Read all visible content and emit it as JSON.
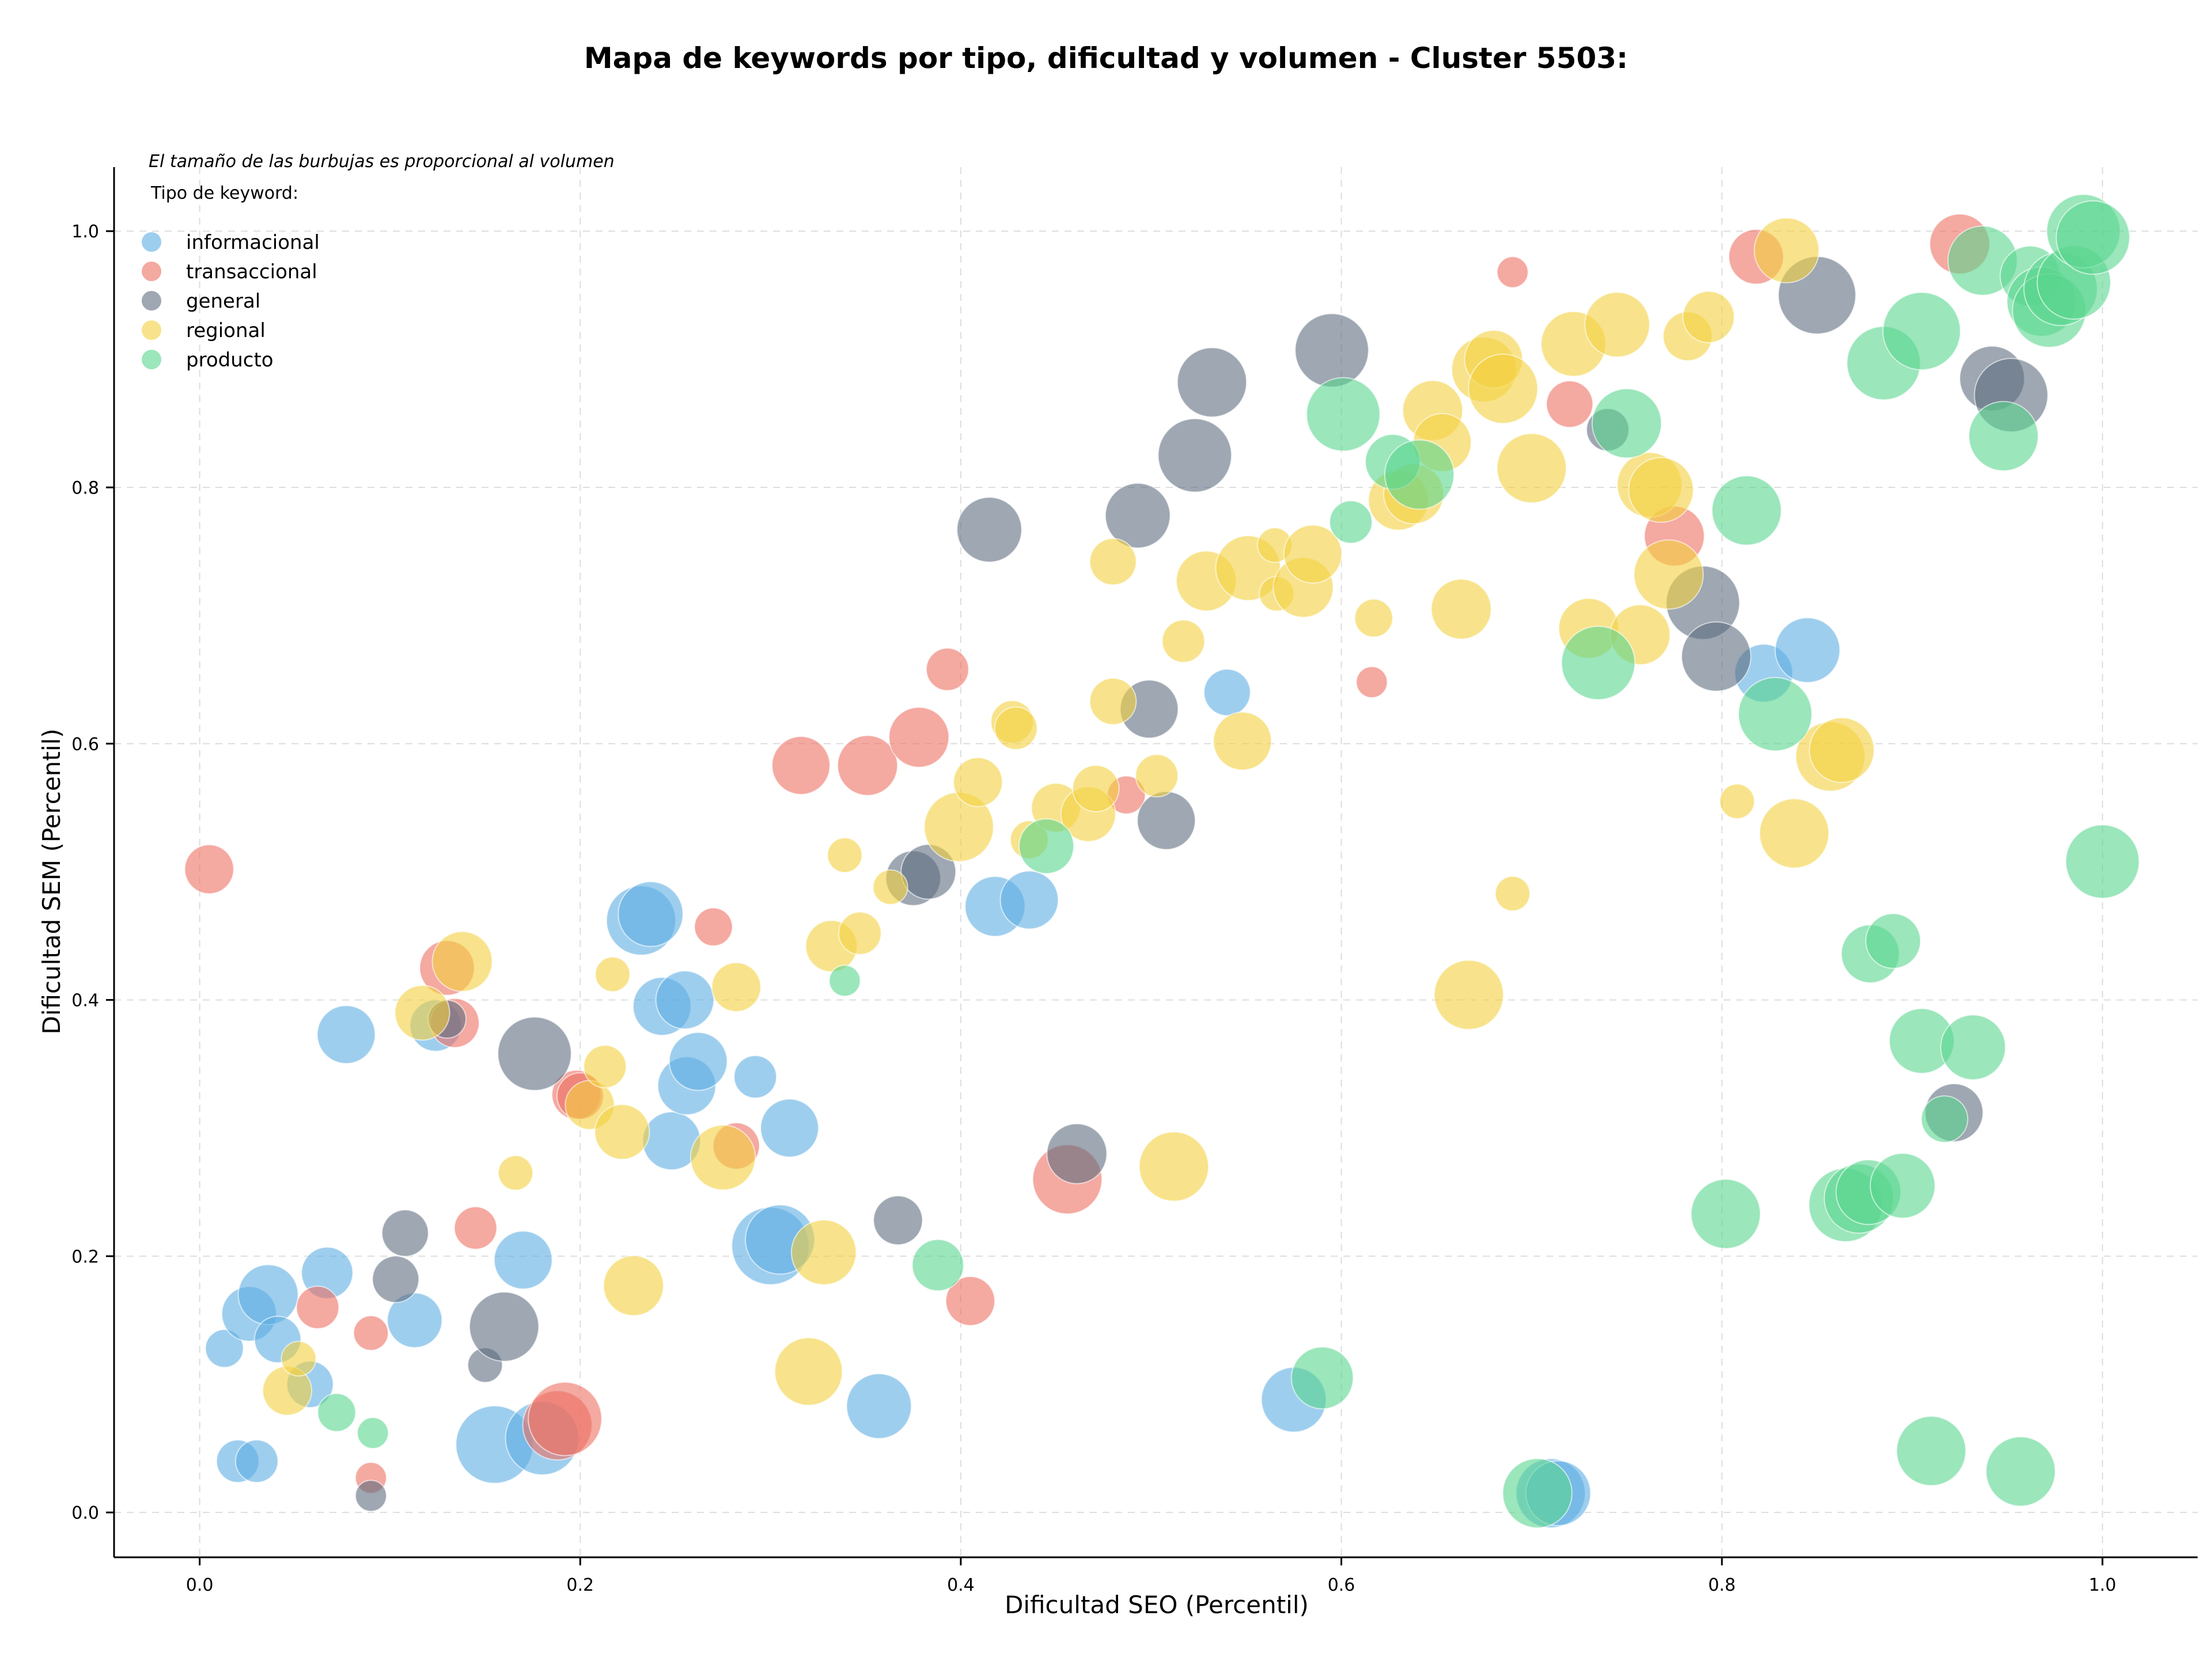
{
  "chart_data": {
    "type": "scatter",
    "title": "Mapa de keywords por tipo, dificultad y volumen - Cluster 5503:",
    "xlabel": "Dificultad SEO (Percentil)",
    "ylabel": "Dificultad SEM (Percentil)",
    "xlim": [
      -0.045,
      1.05
    ],
    "ylim": [
      -0.035,
      1.05
    ],
    "x_ticks": [
      "0.0",
      "0.2",
      "0.4",
      "0.6",
      "0.8",
      "1.0"
    ],
    "y_ticks": [
      "0.0",
      "0.2",
      "0.4",
      "0.6",
      "0.8",
      "1.0"
    ],
    "grid": true,
    "legend": {
      "placement": "top-left",
      "note": "El tamaño de las burbujas es proporcional al volumen",
      "title": "Tipo de keyword:"
    },
    "series": [
      {
        "name": "informacional",
        "color": "#5DADE2",
        "points": [
          {
            "x": 0.013,
            "y": 0.128,
            "s": 12
          },
          {
            "x": 0.02,
            "y": 0.04,
            "s": 15
          },
          {
            "x": 0.03,
            "y": 0.04,
            "s": 15
          },
          {
            "x": 0.026,
            "y": 0.155,
            "s": 25
          },
          {
            "x": 0.036,
            "y": 0.17,
            "s": 30
          },
          {
            "x": 0.041,
            "y": 0.135,
            "s": 18
          },
          {
            "x": 0.058,
            "y": 0.1,
            "s": 18
          },
          {
            "x": 0.067,
            "y": 0.187,
            "s": 22
          },
          {
            "x": 0.077,
            "y": 0.373,
            "s": 28
          },
          {
            "x": 0.113,
            "y": 0.15,
            "s": 25
          },
          {
            "x": 0.124,
            "y": 0.38,
            "s": 22
          },
          {
            "x": 0.155,
            "y": 0.053,
            "s": 50
          },
          {
            "x": 0.17,
            "y": 0.197,
            "s": 28
          },
          {
            "x": 0.18,
            "y": 0.058,
            "s": 45
          },
          {
            "x": 0.232,
            "y": 0.462,
            "s": 40
          },
          {
            "x": 0.237,
            "y": 0.467,
            "s": 35
          },
          {
            "x": 0.243,
            "y": 0.395,
            "s": 28
          },
          {
            "x": 0.248,
            "y": 0.29,
            "s": 28
          },
          {
            "x": 0.255,
            "y": 0.4,
            "s": 28
          },
          {
            "x": 0.256,
            "y": 0.333,
            "s": 28
          },
          {
            "x": 0.262,
            "y": 0.352,
            "s": 28
          },
          {
            "x": 0.292,
            "y": 0.34,
            "s": 15
          },
          {
            "x": 0.3,
            "y": 0.208,
            "s": 50
          },
          {
            "x": 0.305,
            "y": 0.213,
            "s": 40
          },
          {
            "x": 0.31,
            "y": 0.3,
            "s": 28
          },
          {
            "x": 0.357,
            "y": 0.083,
            "s": 35
          },
          {
            "x": 0.418,
            "y": 0.473,
            "s": 30
          },
          {
            "x": 0.436,
            "y": 0.478,
            "s": 28
          },
          {
            "x": 0.54,
            "y": 0.64,
            "s": 18
          },
          {
            "x": 0.575,
            "y": 0.088,
            "s": 35
          },
          {
            "x": 0.71,
            "y": 0.015,
            "s": 40
          },
          {
            "x": 0.714,
            "y": 0.015,
            "s": 35
          },
          {
            "x": 0.822,
            "y": 0.655,
            "s": 28
          },
          {
            "x": 0.845,
            "y": 0.673,
            "s": 35
          }
        ]
      },
      {
        "name": "transaccional",
        "color": "#EC7063",
        "points": [
          {
            "x": 0.005,
            "y": 0.502,
            "s": 20
          },
          {
            "x": 0.062,
            "y": 0.16,
            "s": 15
          },
          {
            "x": 0.09,
            "y": 0.14,
            "s": 10
          },
          {
            "x": 0.09,
            "y": 0.027,
            "s": 8
          },
          {
            "x": 0.13,
            "y": 0.425,
            "s": 25
          },
          {
            "x": 0.134,
            "y": 0.382,
            "s": 20
          },
          {
            "x": 0.145,
            "y": 0.222,
            "s": 15
          },
          {
            "x": 0.188,
            "y": 0.068,
            "s": 40
          },
          {
            "x": 0.192,
            "y": 0.073,
            "s": 45
          },
          {
            "x": 0.198,
            "y": 0.326,
            "s": 20
          },
          {
            "x": 0.2,
            "y": 0.325,
            "s": 18
          },
          {
            "x": 0.27,
            "y": 0.457,
            "s": 12
          },
          {
            "x": 0.282,
            "y": 0.286,
            "s": 18
          },
          {
            "x": 0.316,
            "y": 0.583,
            "s": 28
          },
          {
            "x": 0.351,
            "y": 0.583,
            "s": 30
          },
          {
            "x": 0.378,
            "y": 0.605,
            "s": 30
          },
          {
            "x": 0.393,
            "y": 0.658,
            "s": 15
          },
          {
            "x": 0.405,
            "y": 0.165,
            "s": 20
          },
          {
            "x": 0.456,
            "y": 0.26,
            "s": 40
          },
          {
            "x": 0.487,
            "y": 0.56,
            "s": 12
          },
          {
            "x": 0.616,
            "y": 0.648,
            "s": 8
          },
          {
            "x": 0.69,
            "y": 0.968,
            "s": 8
          },
          {
            "x": 0.72,
            "y": 0.865,
            "s": 18
          },
          {
            "x": 0.775,
            "y": 0.762,
            "s": 30
          },
          {
            "x": 0.818,
            "y": 0.98,
            "s": 25
          },
          {
            "x": 0.925,
            "y": 0.99,
            "s": 30
          }
        ]
      },
      {
        "name": "general",
        "color": "#5D6D7E",
        "points": [
          {
            "x": 0.09,
            "y": 0.013,
            "s": 8
          },
          {
            "x": 0.103,
            "y": 0.182,
            "s": 18
          },
          {
            "x": 0.108,
            "y": 0.218,
            "s": 18
          },
          {
            "x": 0.13,
            "y": 0.385,
            "s": 12
          },
          {
            "x": 0.15,
            "y": 0.115,
            "s": 10
          },
          {
            "x": 0.16,
            "y": 0.145,
            "s": 40
          },
          {
            "x": 0.176,
            "y": 0.358,
            "s": 45
          },
          {
            "x": 0.367,
            "y": 0.228,
            "s": 20
          },
          {
            "x": 0.375,
            "y": 0.495,
            "s": 25
          },
          {
            "x": 0.383,
            "y": 0.5,
            "s": 25
          },
          {
            "x": 0.415,
            "y": 0.767,
            "s": 35
          },
          {
            "x": 0.461,
            "y": 0.28,
            "s": 30
          },
          {
            "x": 0.493,
            "y": 0.778,
            "s": 35
          },
          {
            "x": 0.499,
            "y": 0.627,
            "s": 28
          },
          {
            "x": 0.508,
            "y": 0.54,
            "s": 28
          },
          {
            "x": 0.523,
            "y": 0.825,
            "s": 45
          },
          {
            "x": 0.532,
            "y": 0.882,
            "s": 40
          },
          {
            "x": 0.595,
            "y": 0.907,
            "s": 45
          },
          {
            "x": 0.74,
            "y": 0.845,
            "s": 15
          },
          {
            "x": 0.79,
            "y": 0.71,
            "s": 45
          },
          {
            "x": 0.797,
            "y": 0.668,
            "s": 40
          },
          {
            "x": 0.85,
            "y": 0.95,
            "s": 50
          },
          {
            "x": 0.922,
            "y": 0.312,
            "s": 28
          },
          {
            "x": 0.942,
            "y": 0.885,
            "s": 35
          },
          {
            "x": 0.952,
            "y": 0.872,
            "s": 45
          }
        ]
      },
      {
        "name": "regional",
        "color": "#F4D03F",
        "points": [
          {
            "x": 0.046,
            "y": 0.095,
            "s": 20
          },
          {
            "x": 0.052,
            "y": 0.12,
            "s": 10
          },
          {
            "x": 0.117,
            "y": 0.39,
            "s": 25
          },
          {
            "x": 0.138,
            "y": 0.43,
            "s": 30
          },
          {
            "x": 0.166,
            "y": 0.265,
            "s": 10
          },
          {
            "x": 0.205,
            "y": 0.318,
            "s": 20
          },
          {
            "x": 0.213,
            "y": 0.348,
            "s": 15
          },
          {
            "x": 0.217,
            "y": 0.42,
            "s": 10
          },
          {
            "x": 0.222,
            "y": 0.297,
            "s": 25
          },
          {
            "x": 0.228,
            "y": 0.177,
            "s": 30
          },
          {
            "x": 0.275,
            "y": 0.277,
            "s": 35
          },
          {
            "x": 0.282,
            "y": 0.41,
            "s": 20
          },
          {
            "x": 0.32,
            "y": 0.11,
            "s": 38
          },
          {
            "x": 0.328,
            "y": 0.203,
            "s": 35
          },
          {
            "x": 0.332,
            "y": 0.442,
            "s": 22
          },
          {
            "x": 0.339,
            "y": 0.513,
            "s": 10
          },
          {
            "x": 0.347,
            "y": 0.452,
            "s": 15
          },
          {
            "x": 0.363,
            "y": 0.488,
            "s": 10
          },
          {
            "x": 0.399,
            "y": 0.535,
            "s": 40
          },
          {
            "x": 0.409,
            "y": 0.57,
            "s": 20
          },
          {
            "x": 0.427,
            "y": 0.617,
            "s": 15
          },
          {
            "x": 0.429,
            "y": 0.612,
            "s": 15
          },
          {
            "x": 0.436,
            "y": 0.525,
            "s": 12
          },
          {
            "x": 0.45,
            "y": 0.55,
            "s": 20
          },
          {
            "x": 0.467,
            "y": 0.545,
            "s": 25
          },
          {
            "x": 0.471,
            "y": 0.565,
            "s": 18
          },
          {
            "x": 0.48,
            "y": 0.742,
            "s": 18
          },
          {
            "x": 0.48,
            "y": 0.633,
            "s": 18
          },
          {
            "x": 0.503,
            "y": 0.575,
            "s": 15
          },
          {
            "x": 0.512,
            "y": 0.27,
            "s": 40
          },
          {
            "x": 0.517,
            "y": 0.68,
            "s": 15
          },
          {
            "x": 0.529,
            "y": 0.727,
            "s": 30
          },
          {
            "x": 0.548,
            "y": 0.602,
            "s": 28
          },
          {
            "x": 0.551,
            "y": 0.737,
            "s": 35
          },
          {
            "x": 0.565,
            "y": 0.755,
            "s": 10
          },
          {
            "x": 0.566,
            "y": 0.717,
            "s": 10
          },
          {
            "x": 0.58,
            "y": 0.722,
            "s": 30
          },
          {
            "x": 0.585,
            "y": 0.748,
            "s": 28
          },
          {
            "x": 0.617,
            "y": 0.698,
            "s": 12
          },
          {
            "x": 0.63,
            "y": 0.79,
            "s": 30
          },
          {
            "x": 0.638,
            "y": 0.795,
            "s": 30
          },
          {
            "x": 0.648,
            "y": 0.86,
            "s": 30
          },
          {
            "x": 0.653,
            "y": 0.835,
            "s": 28
          },
          {
            "x": 0.663,
            "y": 0.705,
            "s": 30
          },
          {
            "x": 0.667,
            "y": 0.404,
            "s": 40
          },
          {
            "x": 0.675,
            "y": 0.892,
            "s": 35
          },
          {
            "x": 0.68,
            "y": 0.9,
            "s": 28
          },
          {
            "x": 0.685,
            "y": 0.877,
            "s": 40
          },
          {
            "x": 0.69,
            "y": 0.483,
            "s": 10
          },
          {
            "x": 0.7,
            "y": 0.815,
            "s": 40
          },
          {
            "x": 0.722,
            "y": 0.912,
            "s": 35
          },
          {
            "x": 0.73,
            "y": 0.69,
            "s": 30
          },
          {
            "x": 0.745,
            "y": 0.927,
            "s": 35
          },
          {
            "x": 0.757,
            "y": 0.685,
            "s": 30
          },
          {
            "x": 0.762,
            "y": 0.802,
            "s": 35
          },
          {
            "x": 0.768,
            "y": 0.798,
            "s": 35
          },
          {
            "x": 0.772,
            "y": 0.732,
            "s": 40
          },
          {
            "x": 0.782,
            "y": 0.918,
            "s": 20
          },
          {
            "x": 0.793,
            "y": 0.933,
            "s": 22
          },
          {
            "x": 0.808,
            "y": 0.555,
            "s": 10
          },
          {
            "x": 0.834,
            "y": 0.985,
            "s": 35
          },
          {
            "x": 0.838,
            "y": 0.53,
            "s": 40
          },
          {
            "x": 0.857,
            "y": 0.59,
            "s": 40
          },
          {
            "x": 0.863,
            "y": 0.595,
            "s": 35
          }
        ]
      },
      {
        "name": "producto",
        "color": "#58D68D",
        "points": [
          {
            "x": 0.072,
            "y": 0.078,
            "s": 12
          },
          {
            "x": 0.091,
            "y": 0.062,
            "s": 8
          },
          {
            "x": 0.339,
            "y": 0.415,
            "s": 8
          },
          {
            "x": 0.388,
            "y": 0.193,
            "s": 22
          },
          {
            "x": 0.445,
            "y": 0.52,
            "s": 25
          },
          {
            "x": 0.59,
            "y": 0.105,
            "s": 32
          },
          {
            "x": 0.601,
            "y": 0.857,
            "s": 45
          },
          {
            "x": 0.605,
            "y": 0.773,
            "s": 15
          },
          {
            "x": 0.627,
            "y": 0.82,
            "s": 25
          },
          {
            "x": 0.641,
            "y": 0.81,
            "s": 40
          },
          {
            "x": 0.703,
            "y": 0.015,
            "s": 40
          },
          {
            "x": 0.735,
            "y": 0.663,
            "s": 45
          },
          {
            "x": 0.75,
            "y": 0.85,
            "s": 40
          },
          {
            "x": 0.802,
            "y": 0.233,
            "s": 40
          },
          {
            "x": 0.813,
            "y": 0.782,
            "s": 40
          },
          {
            "x": 0.828,
            "y": 0.623,
            "s": 45
          },
          {
            "x": 0.865,
            "y": 0.24,
            "s": 45
          },
          {
            "x": 0.872,
            "y": 0.245,
            "s": 40
          },
          {
            "x": 0.877,
            "y": 0.25,
            "s": 35
          },
          {
            "x": 0.878,
            "y": 0.436,
            "s": 28
          },
          {
            "x": 0.885,
            "y": 0.897,
            "s": 45
          },
          {
            "x": 0.89,
            "y": 0.446,
            "s": 25
          },
          {
            "x": 0.895,
            "y": 0.255,
            "s": 35
          },
          {
            "x": 0.905,
            "y": 0.368,
            "s": 35
          },
          {
            "x": 0.905,
            "y": 0.922,
            "s": 50
          },
          {
            "x": 0.91,
            "y": 0.048,
            "s": 40
          },
          {
            "x": 0.917,
            "y": 0.307,
            "s": 18
          },
          {
            "x": 0.932,
            "y": 0.363,
            "s": 35
          },
          {
            "x": 0.937,
            "y": 0.977,
            "s": 40
          },
          {
            "x": 0.948,
            "y": 0.84,
            "s": 40
          },
          {
            "x": 0.957,
            "y": 0.032,
            "s": 40
          },
          {
            "x": 0.962,
            "y": 0.965,
            "s": 30
          },
          {
            "x": 0.968,
            "y": 0.945,
            "s": 40
          },
          {
            "x": 0.972,
            "y": 0.938,
            "s": 45
          },
          {
            "x": 0.978,
            "y": 0.955,
            "s": 45
          },
          {
            "x": 0.985,
            "y": 0.96,
            "s": 45
          },
          {
            "x": 0.99,
            "y": 1.0,
            "s": 45
          },
          {
            "x": 0.995,
            "y": 0.995,
            "s": 45
          },
          {
            "x": 1.0,
            "y": 0.508,
            "s": 45
          }
        ]
      }
    ]
  }
}
